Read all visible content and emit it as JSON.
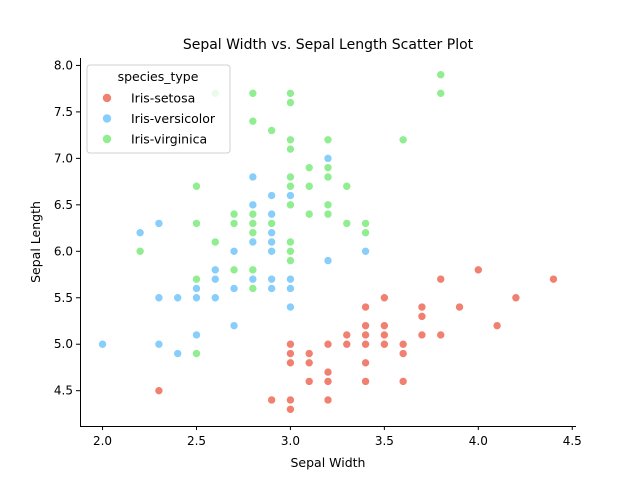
{
  "chart_data": {
    "type": "scatter",
    "title": "Sepal Width vs. Sepal Length Scatter Plot",
    "xlabel": "Sepal Width",
    "ylabel": "Sepal Length",
    "xlim": [
      1.88,
      4.52
    ],
    "ylim": [
      4.12,
      8.08
    ],
    "xticks": [
      "2.0",
      "2.5",
      "3.0",
      "3.5",
      "4.0",
      "4.5"
    ],
    "yticks": [
      "4.5",
      "5.0",
      "5.5",
      "6.0",
      "6.5",
      "7.0",
      "7.5",
      "8.0"
    ],
    "grid": false,
    "legend": {
      "title": "species_type",
      "placement": "top-left"
    },
    "series": [
      {
        "name": "Iris-setosa",
        "color": "#f08070",
        "points": [
          [
            3.5,
            5.1
          ],
          [
            3.0,
            4.9
          ],
          [
            3.2,
            4.7
          ],
          [
            3.1,
            4.6
          ],
          [
            3.6,
            5.0
          ],
          [
            3.9,
            5.4
          ],
          [
            3.4,
            4.6
          ],
          [
            3.4,
            5.0
          ],
          [
            2.9,
            4.4
          ],
          [
            3.1,
            4.9
          ],
          [
            3.7,
            5.4
          ],
          [
            3.4,
            4.8
          ],
          [
            3.0,
            4.8
          ],
          [
            3.0,
            4.3
          ],
          [
            4.0,
            5.8
          ],
          [
            4.4,
            5.7
          ],
          [
            3.9,
            5.4
          ],
          [
            3.5,
            5.1
          ],
          [
            3.8,
            5.7
          ],
          [
            3.8,
            5.1
          ],
          [
            3.4,
            5.4
          ],
          [
            3.7,
            5.1
          ],
          [
            3.6,
            4.6
          ],
          [
            3.3,
            5.1
          ],
          [
            3.4,
            4.8
          ],
          [
            3.0,
            5.0
          ],
          [
            3.4,
            5.0
          ],
          [
            3.5,
            5.2
          ],
          [
            3.4,
            5.2
          ],
          [
            3.2,
            4.7
          ],
          [
            3.1,
            4.8
          ],
          [
            3.4,
            5.4
          ],
          [
            4.1,
            5.2
          ],
          [
            4.2,
            5.5
          ],
          [
            3.1,
            4.9
          ],
          [
            3.2,
            5.0
          ],
          [
            3.5,
            5.5
          ],
          [
            3.6,
            4.9
          ],
          [
            3.0,
            4.4
          ],
          [
            3.4,
            5.1
          ],
          [
            3.5,
            5.0
          ],
          [
            2.3,
            4.5
          ],
          [
            3.2,
            4.4
          ],
          [
            3.5,
            5.0
          ],
          [
            3.8,
            5.1
          ],
          [
            3.0,
            4.8
          ],
          [
            3.8,
            5.1
          ],
          [
            3.2,
            4.6
          ],
          [
            3.7,
            5.3
          ],
          [
            3.3,
            5.0
          ]
        ]
      },
      {
        "name": "Iris-versicolor",
        "color": "#87cefa",
        "points": [
          [
            3.2,
            7.0
          ],
          [
            3.2,
            6.4
          ],
          [
            3.1,
            6.9
          ],
          [
            2.3,
            5.5
          ],
          [
            2.8,
            6.5
          ],
          [
            2.8,
            5.7
          ],
          [
            3.3,
            6.3
          ],
          [
            2.4,
            4.9
          ],
          [
            2.9,
            6.6
          ],
          [
            2.7,
            5.2
          ],
          [
            2.0,
            5.0
          ],
          [
            3.0,
            5.9
          ],
          [
            2.2,
            6.0
          ],
          [
            2.9,
            6.1
          ],
          [
            2.9,
            5.6
          ],
          [
            3.1,
            6.7
          ],
          [
            3.0,
            5.6
          ],
          [
            2.7,
            5.8
          ],
          [
            2.2,
            6.2
          ],
          [
            2.5,
            5.6
          ],
          [
            3.2,
            5.9
          ],
          [
            2.8,
            6.1
          ],
          [
            2.5,
            6.3
          ],
          [
            2.8,
            6.1
          ],
          [
            2.9,
            6.4
          ],
          [
            3.0,
            6.6
          ],
          [
            2.8,
            6.8
          ],
          [
            3.0,
            6.7
          ],
          [
            2.9,
            6.0
          ],
          [
            2.6,
            5.7
          ],
          [
            2.4,
            5.5
          ],
          [
            2.4,
            5.5
          ],
          [
            2.7,
            5.8
          ],
          [
            2.7,
            6.0
          ],
          [
            3.0,
            5.4
          ],
          [
            3.4,
            6.0
          ],
          [
            3.1,
            6.7
          ],
          [
            2.3,
            6.3
          ],
          [
            3.0,
            5.6
          ],
          [
            2.5,
            5.5
          ],
          [
            2.6,
            5.5
          ],
          [
            3.0,
            6.1
          ],
          [
            2.6,
            5.8
          ],
          [
            2.3,
            5.0
          ],
          [
            2.7,
            5.6
          ],
          [
            3.0,
            5.7
          ],
          [
            2.9,
            5.7
          ],
          [
            2.9,
            6.2
          ],
          [
            2.5,
            5.1
          ],
          [
            2.8,
            5.7
          ]
        ]
      },
      {
        "name": "Iris-virginica",
        "color": "#90ee90",
        "points": [
          [
            3.3,
            6.3
          ],
          [
            2.7,
            5.8
          ],
          [
            3.0,
            7.1
          ],
          [
            2.9,
            6.3
          ],
          [
            3.0,
            6.5
          ],
          [
            3.0,
            7.6
          ],
          [
            2.5,
            4.9
          ],
          [
            2.9,
            7.3
          ],
          [
            2.5,
            6.7
          ],
          [
            3.6,
            7.2
          ],
          [
            3.2,
            6.5
          ],
          [
            2.7,
            6.4
          ],
          [
            3.0,
            6.8
          ],
          [
            2.5,
            5.7
          ],
          [
            2.8,
            5.8
          ],
          [
            3.2,
            6.4
          ],
          [
            3.0,
            6.5
          ],
          [
            3.8,
            7.7
          ],
          [
            2.6,
            7.7
          ],
          [
            2.2,
            6.0
          ],
          [
            3.2,
            6.9
          ],
          [
            2.8,
            5.6
          ],
          [
            2.8,
            7.7
          ],
          [
            2.7,
            6.3
          ],
          [
            3.3,
            6.7
          ],
          [
            3.2,
            7.2
          ],
          [
            2.8,
            6.2
          ],
          [
            3.0,
            6.1
          ],
          [
            2.8,
            6.4
          ],
          [
            3.0,
            7.2
          ],
          [
            2.8,
            7.4
          ],
          [
            3.8,
            7.9
          ],
          [
            2.8,
            6.4
          ],
          [
            2.8,
            6.3
          ],
          [
            2.6,
            6.1
          ],
          [
            3.0,
            7.7
          ],
          [
            3.4,
            6.3
          ],
          [
            3.1,
            6.4
          ],
          [
            3.0,
            6.0
          ],
          [
            3.1,
            6.9
          ],
          [
            3.1,
            6.7
          ],
          [
            3.1,
            6.9
          ],
          [
            2.7,
            5.8
          ],
          [
            3.2,
            6.8
          ],
          [
            3.3,
            6.7
          ],
          [
            3.0,
            6.7
          ],
          [
            2.5,
            6.3
          ],
          [
            3.0,
            6.5
          ],
          [
            3.4,
            6.2
          ],
          [
            3.0,
            5.9
          ]
        ]
      }
    ]
  }
}
